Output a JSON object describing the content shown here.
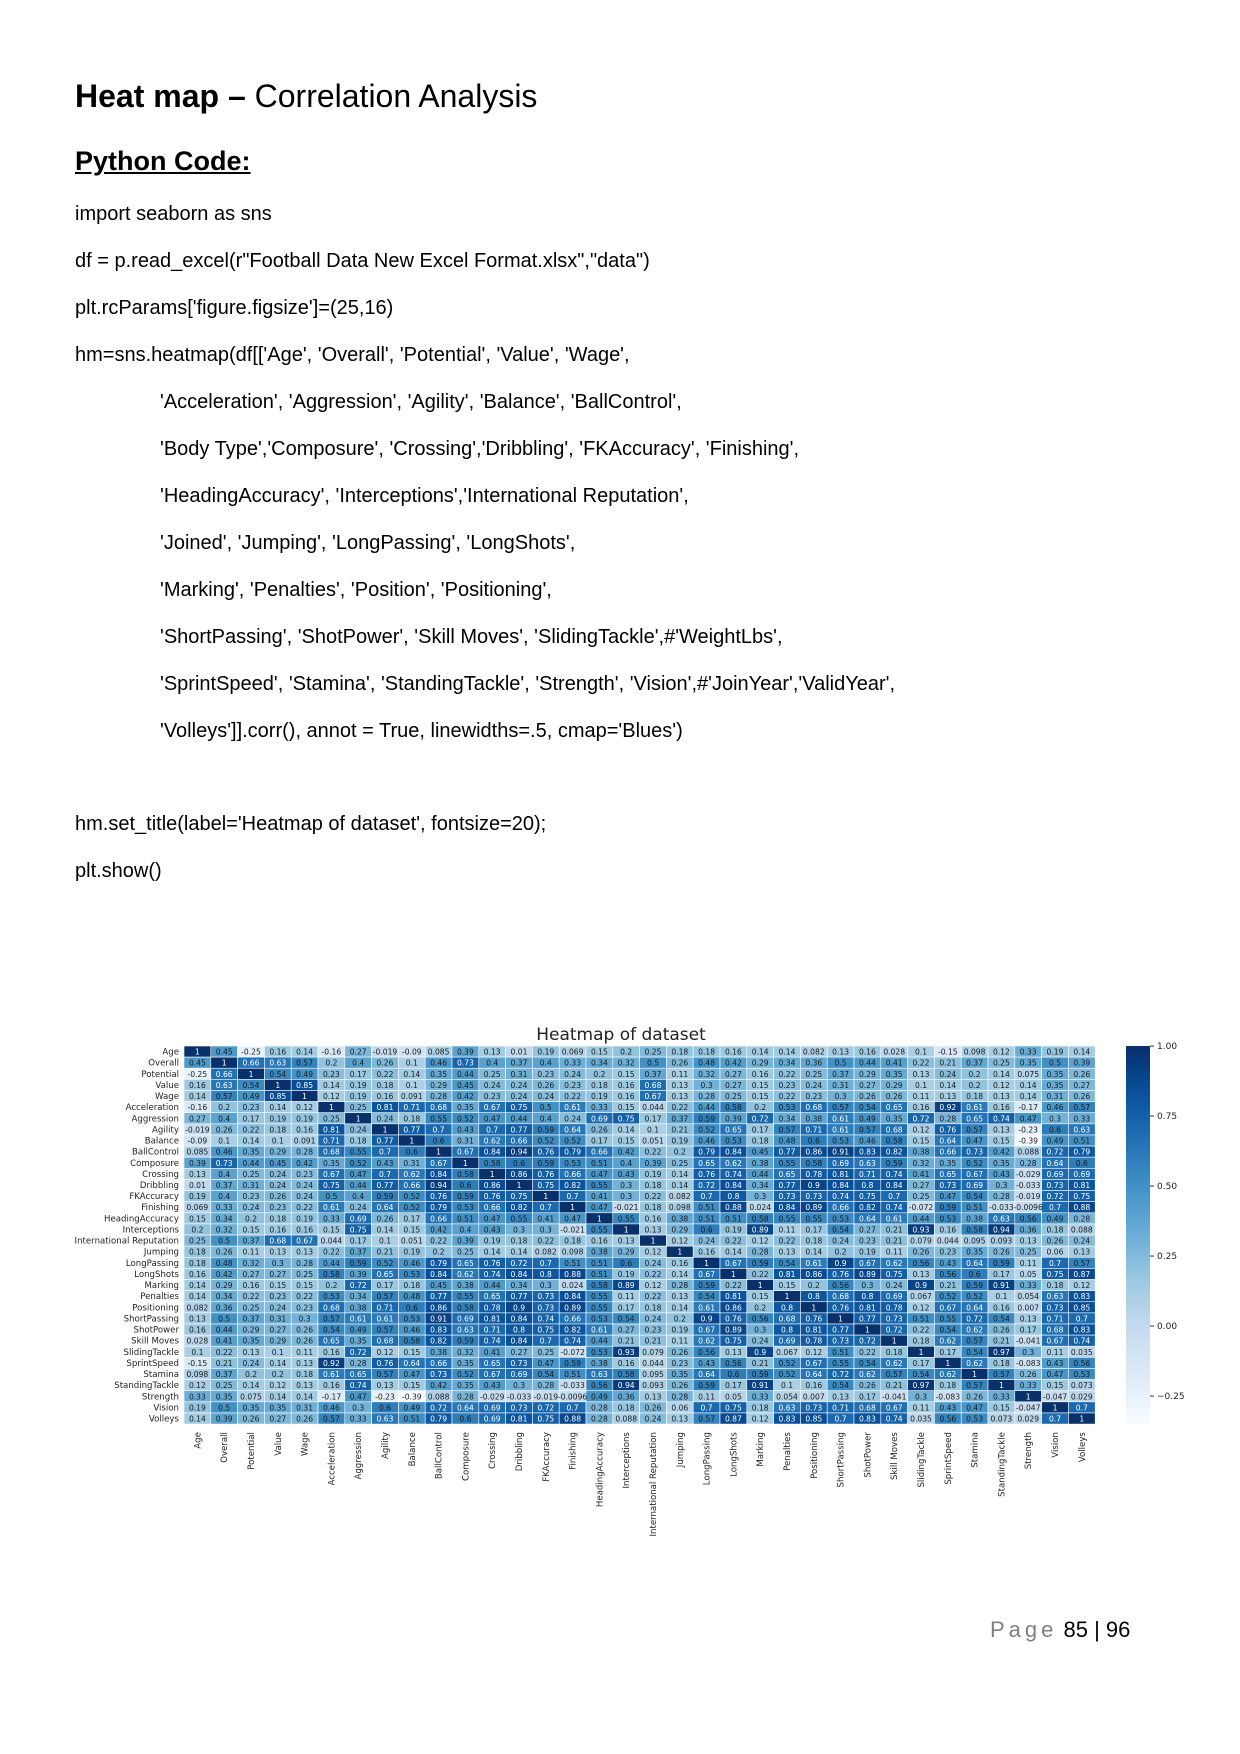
{
  "heading": {
    "bold": "Heat map –",
    "rest": " Correlation Analysis"
  },
  "subheading": "Python Code:",
  "code_lines": [
    "import seaborn as sns",
    "df = p.read_excel(r\"Football Data New Excel Format.xlsx\",\"data\")",
    "plt.rcParams['figure.figsize']=(25,16)",
    "hm=sns.heatmap(df[['Age', 'Overall', 'Potential', 'Value', 'Wage',",
    "'Acceleration', 'Aggression', 'Agility', 'Balance', 'BallControl',",
    "'Body Type','Composure', 'Crossing','Dribbling', 'FKAccuracy', 'Finishing',",
    "'HeadingAccuracy', 'Interceptions','International Reputation',",
    "'Joined', 'Jumping', 'LongPassing', 'LongShots',",
    "'Marking', 'Penalties', 'Position', 'Positioning',",
    "'ShortPassing', 'ShotPower', 'Skill Moves', 'SlidingTackle',#'WeightLbs',",
    "'SprintSpeed', 'Stamina', 'StandingTackle', 'Strength', 'Vision',#'JoinYear','ValidYear',",
    "'Volleys']].corr(), annot = True, linewidths=.5, cmap='Blues')",
    "hm.set_title(label='Heatmap of dataset', fontsize=20);",
    "plt.show()"
  ],
  "footer": {
    "page_word": "Page",
    "page_text": "85 | 96"
  },
  "colors": {
    "low": "#f7fbff",
    "high": "#08306b"
  },
  "chart_data": {
    "type": "heatmap",
    "title": "Heatmap of dataset",
    "labels": [
      "Age",
      "Overall",
      "Potential",
      "Value",
      "Wage",
      "Acceleration",
      "Aggression",
      "Agility",
      "Balance",
      "BallControl",
      "Composure",
      "Crossing",
      "Dribbling",
      "FKAccuracy",
      "Finishing",
      "HeadingAccuracy",
      "Interceptions",
      "International Reputation",
      "Jumping",
      "LongPassing",
      "LongShots",
      "Marking",
      "Penalties",
      "Positioning",
      "ShortPassing",
      "ShotPower",
      "Skill Moves",
      "SlidingTackle",
      "SprintSpeed",
      "Stamina",
      "StandingTackle",
      "Strength",
      "Vision",
      "Volleys"
    ],
    "colorbar": {
      "range": [
        -0.35,
        1.0
      ],
      "ticks": [
        "1.00",
        "0.75",
        "0.50",
        "0.25",
        "0.00",
        "−0.25"
      ],
      "tick_values": [
        1.0,
        0.75,
        0.5,
        0.25,
        0.0,
        -0.25
      ]
    },
    "values": [
      [
        1,
        0.45,
        -0.25,
        0.16,
        0.14,
        -0.16,
        0.27,
        -0.019,
        -0.09,
        0.085,
        0.39,
        0.13,
        0.01,
        0.19,
        0.069,
        0.15,
        0.2,
        0.25,
        0.18,
        0.18,
        0.16,
        0.14,
        0.14,
        0.082,
        0.13,
        0.16,
        0.028,
        0.1,
        -0.15,
        0.098,
        0.12,
        0.33,
        0.19,
        0.14
      ],
      [
        0.45,
        1,
        0.66,
        0.63,
        0.57,
        0.2,
        0.4,
        0.26,
        0.1,
        0.46,
        0.73,
        0.4,
        0.37,
        0.4,
        0.33,
        0.34,
        0.32,
        0.5,
        0.26,
        0.48,
        0.42,
        0.29,
        0.34,
        0.36,
        0.5,
        0.44,
        0.41,
        0.22,
        0.21,
        0.37,
        0.25,
        0.35,
        0.5,
        0.39
      ],
      [
        -0.25,
        0.66,
        1,
        0.54,
        0.49,
        0.23,
        0.17,
        0.22,
        0.14,
        0.35,
        0.44,
        0.25,
        0.31,
        0.23,
        0.24,
        0.2,
        0.15,
        0.37,
        0.11,
        0.32,
        0.27,
        0.16,
        0.22,
        0.25,
        0.37,
        0.29,
        0.35,
        0.13,
        0.24,
        0.2,
        0.14,
        0.075,
        0.35,
        0.26
      ],
      [
        0.16,
        0.63,
        0.54,
        1,
        0.85,
        0.14,
        0.19,
        0.18,
        0.1,
        0.29,
        0.45,
        0.24,
        0.24,
        0.26,
        0.23,
        0.18,
        0.16,
        0.68,
        0.13,
        0.3,
        0.27,
        0.15,
        0.23,
        0.24,
        0.31,
        0.27,
        0.29,
        0.1,
        0.14,
        0.2,
        0.12,
        0.14,
        0.35,
        0.27
      ],
      [
        0.14,
        0.57,
        0.49,
        0.85,
        1,
        0.12,
        0.19,
        0.16,
        0.091,
        0.28,
        0.42,
        0.23,
        0.24,
        0.24,
        0.22,
        0.19,
        0.16,
        0.67,
        0.13,
        0.28,
        0.25,
        0.15,
        0.22,
        0.23,
        0.3,
        0.26,
        0.26,
        0.11,
        0.13,
        0.18,
        0.13,
        0.14,
        0.31,
        0.26
      ],
      [
        -0.16,
        0.2,
        0.23,
        0.14,
        0.12,
        1,
        0.25,
        0.81,
        0.71,
        0.68,
        0.35,
        0.67,
        0.75,
        0.5,
        0.61,
        0.33,
        0.15,
        0.044,
        0.22,
        0.44,
        0.58,
        0.2,
        0.53,
        0.68,
        0.57,
        0.54,
        0.65,
        0.16,
        0.92,
        0.61,
        0.16,
        -0.17,
        0.46,
        0.57
      ],
      [
        0.27,
        0.4,
        0.17,
        0.19,
        0.19,
        0.25,
        1,
        0.24,
        0.18,
        0.55,
        0.52,
        0.47,
        0.44,
        0.4,
        0.24,
        0.69,
        0.75,
        0.17,
        0.37,
        0.59,
        0.39,
        0.72,
        0.34,
        0.38,
        0.61,
        0.49,
        0.35,
        0.72,
        0.28,
        0.65,
        0.74,
        0.47,
        0.3,
        0.33
      ],
      [
        -0.019,
        0.26,
        0.22,
        0.18,
        0.16,
        0.81,
        0.24,
        1,
        0.77,
        0.7,
        0.43,
        0.7,
        0.77,
        0.59,
        0.64,
        0.26,
        0.14,
        0.1,
        0.21,
        0.52,
        0.65,
        0.17,
        0.57,
        0.71,
        0.61,
        0.57,
        0.68,
        0.12,
        0.76,
        0.57,
        0.13,
        -0.23,
        0.6,
        0.63
      ],
      [
        -0.09,
        0.1,
        0.14,
        0.1,
        0.091,
        0.71,
        0.18,
        0.77,
        1,
        0.6,
        0.31,
        0.62,
        0.66,
        0.52,
        0.52,
        0.17,
        0.15,
        0.051,
        0.19,
        0.46,
        0.53,
        0.18,
        0.48,
        0.6,
        0.53,
        0.46,
        0.58,
        0.15,
        0.64,
        0.47,
        0.15,
        -0.39,
        0.49,
        0.51
      ],
      [
        0.085,
        0.46,
        0.35,
        0.29,
        0.28,
        0.68,
        0.55,
        0.7,
        0.6,
        1,
        0.67,
        0.84,
        0.94,
        0.76,
        0.79,
        0.66,
        0.42,
        0.22,
        0.2,
        0.79,
        0.84,
        0.45,
        0.77,
        0.86,
        0.91,
        0.83,
        0.82,
        0.38,
        0.66,
        0.73,
        0.42,
        0.088,
        0.72,
        0.79
      ],
      [
        0.39,
        0.73,
        0.44,
        0.45,
        0.42,
        0.35,
        0.52,
        0.43,
        0.31,
        0.67,
        1,
        0.58,
        0.6,
        0.59,
        0.53,
        0.51,
        0.4,
        0.39,
        0.25,
        0.65,
        0.62,
        0.38,
        0.55,
        0.58,
        0.69,
        0.63,
        0.59,
        0.32,
        0.35,
        0.52,
        0.35,
        0.28,
        0.64,
        0.6
      ],
      [
        0.13,
        0.4,
        0.25,
        0.24,
        0.23,
        0.67,
        0.47,
        0.7,
        0.62,
        0.84,
        0.58,
        1,
        0.86,
        0.76,
        0.66,
        0.47,
        0.43,
        0.19,
        0.14,
        0.76,
        0.74,
        0.44,
        0.65,
        0.78,
        0.81,
        0.71,
        0.74,
        0.41,
        0.65,
        0.67,
        0.43,
        -0.029,
        0.69,
        0.69
      ],
      [
        0.01,
        0.37,
        0.31,
        0.24,
        0.24,
        0.75,
        0.44,
        0.77,
        0.66,
        0.94,
        0.6,
        0.86,
        1,
        0.75,
        0.82,
        0.55,
        0.3,
        0.18,
        0.14,
        0.72,
        0.84,
        0.34,
        0.77,
        0.9,
        0.84,
        0.8,
        0.84,
        0.27,
        0.73,
        0.69,
        0.3,
        -0.033,
        0.73,
        0.81
      ],
      [
        0.19,
        0.4,
        0.23,
        0.26,
        0.24,
        0.5,
        0.4,
        0.59,
        0.52,
        0.76,
        0.59,
        0.76,
        0.75,
        1,
        0.7,
        0.41,
        0.3,
        0.22,
        0.082,
        0.7,
        0.8,
        0.3,
        0.73,
        0.73,
        0.74,
        0.75,
        0.7,
        0.25,
        0.47,
        0.54,
        0.28,
        -0.019,
        0.72,
        0.75
      ],
      [
        0.069,
        0.33,
        0.24,
        0.23,
        0.22,
        0.61,
        0.24,
        0.64,
        0.52,
        0.79,
        0.53,
        0.66,
        0.82,
        0.7,
        1,
        0.47,
        -0.021,
        0.18,
        0.098,
        0.51,
        0.88,
        0.024,
        0.84,
        0.89,
        0.66,
        0.82,
        0.74,
        -0.072,
        0.59,
        0.51,
        -0.033,
        -0.0096,
        0.7,
        0.88
      ],
      [
        0.15,
        0.34,
        0.2,
        0.18,
        0.19,
        0.33,
        0.69,
        0.26,
        0.17,
        0.66,
        0.51,
        0.47,
        0.55,
        0.41,
        0.47,
        1,
        0.55,
        0.16,
        0.38,
        0.51,
        0.51,
        0.58,
        0.55,
        0.55,
        0.53,
        0.64,
        0.61,
        0.44,
        0.53,
        0.38,
        0.63,
        0.56,
        0.49,
        0.28
      ],
      [
        0.2,
        0.32,
        0.15,
        0.16,
        0.16,
        0.15,
        0.75,
        0.14,
        0.15,
        0.42,
        0.4,
        0.43,
        0.3,
        0.3,
        -0.021,
        0.55,
        1,
        0.13,
        0.29,
        0.6,
        0.19,
        0.89,
        0.11,
        0.17,
        0.54,
        0.27,
        0.21,
        0.93,
        0.16,
        0.58,
        0.94,
        0.36,
        0.18,
        0.088
      ],
      [
        0.25,
        0.5,
        0.37,
        0.68,
        0.67,
        0.044,
        0.17,
        0.1,
        0.051,
        0.22,
        0.39,
        0.19,
        0.18,
        0.22,
        0.18,
        0.16,
        0.13,
        1,
        0.12,
        0.24,
        0.22,
        0.12,
        0.22,
        0.18,
        0.24,
        0.23,
        0.21,
        0.079,
        0.044,
        0.095,
        0.093,
        0.13,
        0.26,
        0.24
      ],
      [
        0.18,
        0.26,
        0.11,
        0.13,
        0.13,
        0.22,
        0.37,
        0.21,
        0.19,
        0.2,
        0.25,
        0.14,
        0.14,
        0.082,
        0.098,
        0.38,
        0.29,
        0.12,
        1,
        0.16,
        0.14,
        0.28,
        0.13,
        0.14,
        0.2,
        0.19,
        0.11,
        0.26,
        0.23,
        0.35,
        0.26,
        0.25,
        0.06,
        0.13
      ],
      [
        0.18,
        0.48,
        0.32,
        0.3,
        0.28,
        0.44,
        0.59,
        0.52,
        0.46,
        0.79,
        0.65,
        0.76,
        0.72,
        0.7,
        0.51,
        0.51,
        0.6,
        0.24,
        0.16,
        1,
        0.67,
        0.59,
        0.54,
        0.61,
        0.9,
        0.67,
        0.62,
        0.56,
        0.43,
        0.64,
        0.59,
        0.11,
        0.7,
        0.57
      ],
      [
        0.16,
        0.42,
        0.27,
        0.27,
        0.25,
        0.58,
        0.39,
        0.65,
        0.53,
        0.84,
        0.62,
        0.74,
        0.84,
        0.8,
        0.88,
        0.51,
        0.19,
        0.22,
        0.14,
        0.67,
        1,
        0.22,
        0.81,
        0.86,
        0.76,
        0.89,
        0.75,
        0.13,
        0.56,
        0.6,
        0.17,
        0.05,
        0.75,
        0.87
      ],
      [
        0.14,
        0.29,
        0.16,
        0.15,
        0.15,
        0.2,
        0.72,
        0.17,
        0.18,
        0.45,
        0.38,
        0.44,
        0.34,
        0.3,
        0.024,
        0.58,
        0.89,
        0.12,
        0.28,
        0.59,
        0.22,
        1,
        0.15,
        0.2,
        0.56,
        0.3,
        0.24,
        0.9,
        0.21,
        0.59,
        0.91,
        0.33,
        0.18,
        0.12
      ],
      [
        0.14,
        0.34,
        0.22,
        0.23,
        0.22,
        0.53,
        0.34,
        0.57,
        0.48,
        0.77,
        0.55,
        0.65,
        0.77,
        0.73,
        0.84,
        0.55,
        0.11,
        0.22,
        0.13,
        0.54,
        0.81,
        0.15,
        1,
        0.8,
        0.68,
        0.8,
        0.69,
        0.067,
        0.52,
        0.52,
        0.1,
        0.054,
        0.63,
        0.83
      ],
      [
        0.082,
        0.36,
        0.25,
        0.24,
        0.23,
        0.68,
        0.38,
        0.71,
        0.6,
        0.86,
        0.58,
        0.78,
        0.9,
        0.73,
        0.89,
        0.55,
        0.17,
        0.18,
        0.14,
        0.61,
        0.86,
        0.2,
        0.8,
        1,
        0.76,
        0.81,
        0.78,
        0.12,
        0.67,
        0.64,
        0.16,
        0.007,
        0.73,
        0.85
      ],
      [
        0.13,
        0.5,
        0.37,
        0.31,
        0.3,
        0.57,
        0.61,
        0.61,
        0.53,
        0.91,
        0.69,
        0.81,
        0.84,
        0.74,
        0.66,
        0.53,
        0.54,
        0.24,
        0.2,
        0.9,
        0.76,
        0.56,
        0.68,
        0.76,
        1,
        0.77,
        0.73,
        0.51,
        0.55,
        0.72,
        0.54,
        0.13,
        0.71,
        0.7
      ],
      [
        0.16,
        0.44,
        0.29,
        0.27,
        0.26,
        0.54,
        0.49,
        0.57,
        0.46,
        0.83,
        0.63,
        0.71,
        0.8,
        0.75,
        0.82,
        0.61,
        0.27,
        0.23,
        0.19,
        0.67,
        0.89,
        0.3,
        0.8,
        0.81,
        0.77,
        1,
        0.72,
        0.22,
        0.54,
        0.62,
        0.26,
        0.17,
        0.68,
        0.83
      ],
      [
        0.028,
        0.41,
        0.35,
        0.29,
        0.26,
        0.65,
        0.35,
        0.68,
        0.58,
        0.82,
        0.59,
        0.74,
        0.84,
        0.7,
        0.74,
        0.44,
        0.21,
        0.21,
        0.11,
        0.62,
        0.75,
        0.24,
        0.69,
        0.78,
        0.73,
        0.72,
        1,
        0.18,
        0.62,
        0.57,
        0.21,
        -0.041,
        0.67,
        0.74
      ],
      [
        0.1,
        0.22,
        0.13,
        0.1,
        0.11,
        0.16,
        0.72,
        0.12,
        0.15,
        0.38,
        0.32,
        0.41,
        0.27,
        0.25,
        -0.072,
        0.53,
        0.93,
        0.079,
        0.26,
        0.56,
        0.13,
        0.9,
        0.067,
        0.12,
        0.51,
        0.22,
        0.18,
        1,
        0.17,
        0.54,
        0.97,
        0.3,
        0.11,
        0.035
      ],
      [
        -0.15,
        0.21,
        0.24,
        0.14,
        0.13,
        0.92,
        0.28,
        0.76,
        0.64,
        0.66,
        0.35,
        0.65,
        0.73,
        0.47,
        0.59,
        0.38,
        0.16,
        0.044,
        0.23,
        0.43,
        0.56,
        0.21,
        0.52,
        0.67,
        0.55,
        0.54,
        0.62,
        0.17,
        1,
        0.62,
        0.18,
        -0.083,
        0.43,
        0.56
      ],
      [
        0.098,
        0.37,
        0.2,
        0.2,
        0.18,
        0.61,
        0.65,
        0.57,
        0.47,
        0.73,
        0.52,
        0.67,
        0.69,
        0.54,
        0.51,
        0.63,
        0.58,
        0.095,
        0.35,
        0.64,
        0.6,
        0.59,
        0.52,
        0.64,
        0.72,
        0.62,
        0.57,
        0.54,
        0.62,
        1,
        0.57,
        0.26,
        0.47,
        0.53
      ],
      [
        0.12,
        0.25,
        0.14,
        0.12,
        0.13,
        0.16,
        0.74,
        0.13,
        0.15,
        0.42,
        0.35,
        0.43,
        0.3,
        0.28,
        -0.033,
        0.56,
        0.94,
        0.093,
        0.26,
        0.59,
        0.17,
        0.91,
        0.1,
        0.16,
        0.54,
        0.26,
        0.21,
        0.97,
        0.18,
        0.57,
        1,
        0.33,
        0.15,
        0.073
      ],
      [
        0.33,
        0.35,
        0.075,
        0.14,
        0.14,
        -0.17,
        0.47,
        -0.23,
        -0.39,
        0.088,
        0.28,
        -0.029,
        -0.033,
        -0.019,
        -0.0096,
        0.49,
        0.36,
        0.13,
        0.28,
        0.11,
        0.05,
        0.33,
        0.054,
        0.007,
        0.13,
        0.17,
        -0.041,
        0.3,
        -0.083,
        0.26,
        0.33,
        1,
        -0.047,
        0.029
      ],
      [
        0.19,
        0.5,
        0.35,
        0.35,
        0.31,
        0.46,
        0.3,
        0.6,
        0.49,
        0.72,
        0.64,
        0.69,
        0.73,
        0.72,
        0.7,
        0.28,
        0.18,
        0.26,
        0.06,
        0.7,
        0.75,
        0.18,
        0.63,
        0.73,
        0.71,
        0.68,
        0.67,
        0.11,
        0.43,
        0.47,
        0.15,
        -0.047,
        1,
        0.7
      ],
      [
        0.14,
        0.39,
        0.26,
        0.27,
        0.26,
        0.57,
        0.33,
        0.63,
        0.51,
        0.79,
        0.6,
        0.69,
        0.81,
        0.75,
        0.88,
        0.28,
        0.088,
        0.24,
        0.13,
        0.57,
        0.87,
        0.12,
        0.83,
        0.85,
        0.7,
        0.83,
        0.74,
        0.035,
        0.56,
        0.53,
        0.073,
        0.029,
        0.7,
        1
      ]
    ]
  }
}
